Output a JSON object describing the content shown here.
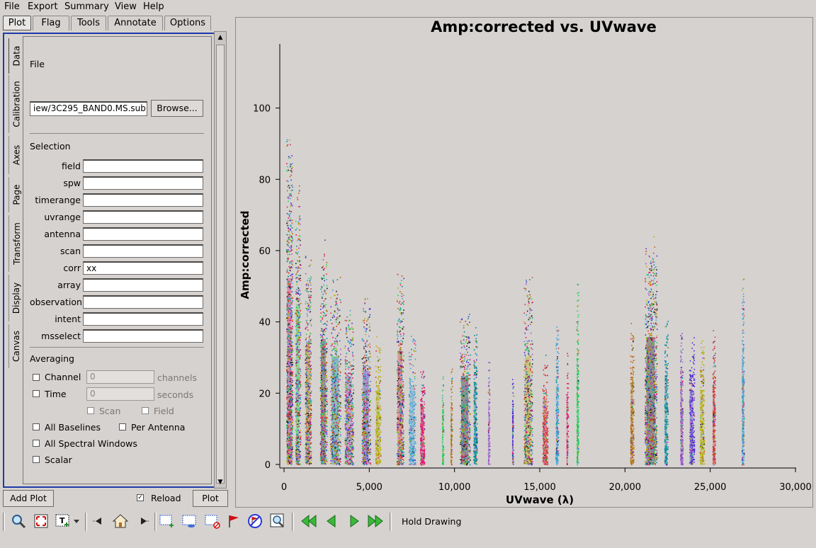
{
  "menu": [
    "File",
    "Export",
    "Summary",
    "View",
    "Help"
  ],
  "top_tabs": [
    "Plot",
    "Flag",
    "Tools",
    "Annotate",
    "Options"
  ],
  "side_tabs": [
    "Data",
    "Calibration",
    "Axes",
    "Page",
    "Transform",
    "Display",
    "Canvas"
  ],
  "data_tab": {
    "file_header": "File",
    "file_value": "iew/3C295_BAND0.MS.sub",
    "browse_label": "Browse...",
    "selection_header": "Selection",
    "fields": [
      {
        "label": "field",
        "value": ""
      },
      {
        "label": "spw",
        "value": ""
      },
      {
        "label": "timerange",
        "value": ""
      },
      {
        "label": "uvrange",
        "value": ""
      },
      {
        "label": "antenna",
        "value": ""
      },
      {
        "label": "scan",
        "value": ""
      },
      {
        "label": "corr",
        "value": "xx"
      },
      {
        "label": "array",
        "value": ""
      },
      {
        "label": "observation",
        "value": ""
      },
      {
        "label": "intent",
        "value": ""
      },
      {
        "label": "msselect",
        "value": ""
      }
    ],
    "averaging_header": "Averaging",
    "channel_label": "Channel",
    "channel_value": "0",
    "channel_unit": "channels",
    "time_label": "Time",
    "time_value": "0",
    "time_unit": "seconds",
    "scan_label": "Scan",
    "field_label": "Field",
    "all_baselines_label": "All Baselines",
    "per_antenna_label": "Per Antenna",
    "all_spw_label": "All Spectral Windows",
    "scalar_label": "Scalar"
  },
  "bottom": {
    "add_plot_label": "Add Plot",
    "reload_label": "Reload",
    "reload_checked": true,
    "plot_label": "Plot"
  },
  "toolbar": {
    "hold_drawing_label": "Hold Drawing",
    "icons": [
      "zoom-icon",
      "pan-icon",
      "annotate-text-icon",
      "dropdown-arrow-icon",
      "step-back-icon",
      "home-icon",
      "step-forward-icon",
      "box-select-icon",
      "subtract-region-icon",
      "clear-region-icon",
      "flag-icon",
      "unflag-icon",
      "locate-icon",
      "first-page-icon",
      "prev-page-icon",
      "next-page-icon",
      "last-page-icon"
    ]
  },
  "chart_data": {
    "type": "scatter",
    "title": "Amp:corrected vs. UVwave",
    "xlabel": "UVwave (λ)",
    "ylabel": "Amp:corrected",
    "xlim": [
      0,
      30000
    ],
    "ylim": [
      0,
      118
    ],
    "xticks": [
      0,
      5000,
      10000,
      15000,
      20000,
      25000,
      30000
    ],
    "xtick_labels": [
      "0",
      "5,000",
      "10,000",
      "15,000",
      "20,000",
      "25,000",
      "30,000"
    ],
    "yticks": [
      0,
      20,
      40,
      60,
      80,
      100
    ],
    "grid": false,
    "palette": [
      "#e0116d",
      "#1ad14f",
      "#b36a00",
      "#1a1a1a",
      "#008b9c",
      "#9a55c8",
      "#4a2ad4",
      "#b4b000",
      "#d43333",
      "#3aa0d8"
    ],
    "clusters": [
      {
        "x": 300,
        "width": 350,
        "ymax": 95,
        "density": "very-high"
      },
      {
        "x": 800,
        "width": 300,
        "ymax": 82,
        "density": "high"
      },
      {
        "x": 1400,
        "width": 350,
        "ymax": 62,
        "density": "high"
      },
      {
        "x": 2300,
        "width": 400,
        "ymax": 64,
        "density": "high"
      },
      {
        "x": 3000,
        "width": 600,
        "ymax": 55,
        "density": "high"
      },
      {
        "x": 3800,
        "width": 500,
        "ymax": 45,
        "density": "high"
      },
      {
        "x": 4800,
        "width": 500,
        "ymax": 48,
        "density": "high"
      },
      {
        "x": 5500,
        "width": 300,
        "ymax": 38,
        "density": "medium"
      },
      {
        "x": 6800,
        "width": 400,
        "ymax": 58,
        "density": "high"
      },
      {
        "x": 7500,
        "width": 400,
        "ymax": 40,
        "density": "medium"
      },
      {
        "x": 8100,
        "width": 250,
        "ymax": 30,
        "density": "medium"
      },
      {
        "x": 9300,
        "width": 80,
        "ymax": 28,
        "density": "low"
      },
      {
        "x": 9800,
        "width": 80,
        "ymax": 30,
        "density": "low"
      },
      {
        "x": 10600,
        "width": 600,
        "ymax": 45,
        "density": "high"
      },
      {
        "x": 11200,
        "width": 200,
        "ymax": 42,
        "density": "medium"
      },
      {
        "x": 12000,
        "width": 100,
        "ymax": 32,
        "density": "low"
      },
      {
        "x": 13400,
        "width": 60,
        "ymax": 28,
        "density": "low"
      },
      {
        "x": 14300,
        "width": 500,
        "ymax": 55,
        "density": "high"
      },
      {
        "x": 15300,
        "width": 300,
        "ymax": 32,
        "density": "medium"
      },
      {
        "x": 16000,
        "width": 150,
        "ymax": 40,
        "density": "medium"
      },
      {
        "x": 16600,
        "width": 100,
        "ymax": 36,
        "density": "low"
      },
      {
        "x": 17200,
        "width": 100,
        "ymax": 52,
        "density": "medium"
      },
      {
        "x": 20400,
        "width": 200,
        "ymax": 42,
        "density": "medium"
      },
      {
        "x": 21500,
        "width": 700,
        "ymax": 65,
        "density": "very-high"
      },
      {
        "x": 22400,
        "width": 200,
        "ymax": 45,
        "density": "medium"
      },
      {
        "x": 23300,
        "width": 150,
        "ymax": 40,
        "density": "medium"
      },
      {
        "x": 23900,
        "width": 300,
        "ymax": 38,
        "density": "medium"
      },
      {
        "x": 24500,
        "width": 250,
        "ymax": 38,
        "density": "medium"
      },
      {
        "x": 25200,
        "width": 150,
        "ymax": 40,
        "density": "medium"
      },
      {
        "x": 26900,
        "width": 120,
        "ymax": 55,
        "density": "medium"
      }
    ]
  }
}
